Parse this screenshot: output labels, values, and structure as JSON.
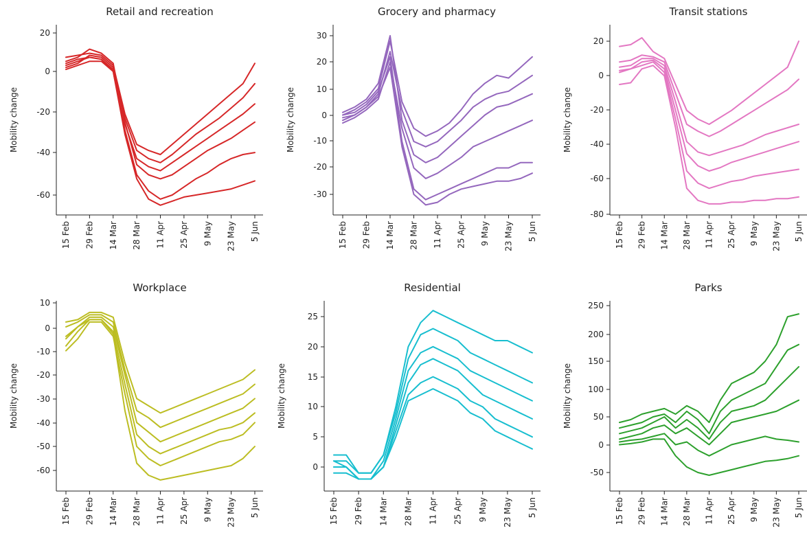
{
  "chart_data": [
    {
      "type": "line",
      "title": "Retail and recreation",
      "ylabel": "Mobility change",
      "color": "#d62728",
      "x_ticks": [
        "15 Feb",
        "29 Feb",
        "14 Mar",
        "28 Mar",
        "11 Apr",
        "25 Apr",
        "9 May",
        "23 May",
        "5 Jun"
      ],
      "y_ticks": [
        20,
        0,
        -20,
        -40,
        -60
      ],
      "ylim": [
        -70,
        22
      ],
      "x": [
        "15 Feb",
        "22 Feb",
        "29 Feb",
        "7 Mar",
        "14 Mar",
        "21 Mar",
        "28 Mar",
        "4 Apr",
        "11 Apr",
        "18 Apr",
        "25 Apr",
        "2 May",
        "9 May",
        "16 May",
        "23 May",
        "30 May",
        "5 Jun"
      ],
      "series": [
        {
          "values": [
            8,
            9,
            10,
            9,
            4,
            -20,
            -35,
            -38,
            -40,
            -35,
            -30,
            -25,
            -20,
            -15,
            -10,
            -5,
            5
          ]
        },
        {
          "values": [
            5,
            7,
            8,
            7,
            2,
            -22,
            -38,
            -42,
            -44,
            -40,
            -35,
            -30,
            -26,
            -22,
            -17,
            -12,
            -5
          ]
        },
        {
          "values": [
            6,
            8,
            12,
            10,
            5,
            -25,
            -42,
            -46,
            -48,
            -44,
            -40,
            -36,
            -32,
            -28,
            -24,
            -20,
            -15
          ]
        },
        {
          "values": [
            3,
            5,
            9,
            8,
            3,
            -24,
            -45,
            -50,
            -52,
            -50,
            -46,
            -42,
            -38,
            -35,
            -32,
            -28,
            -24
          ]
        },
        {
          "values": [
            2,
            4,
            6,
            6,
            1,
            -28,
            -50,
            -58,
            -62,
            -60,
            -56,
            -52,
            -49,
            -45,
            -42,
            -40,
            -39
          ]
        },
        {
          "values": [
            4,
            6,
            8,
            7,
            1,
            -30,
            -52,
            -62,
            -65,
            -63,
            -61,
            -60,
            -59,
            -58,
            -57,
            -55,
            -53
          ]
        }
      ]
    },
    {
      "type": "line",
      "title": "Grocery and pharmacy",
      "ylabel": "Mobility change",
      "color": "#9467bd",
      "x_ticks": [
        "15 Feb",
        "29 Feb",
        "14 Mar",
        "28 Mar",
        "11 Apr",
        "25 Apr",
        "9 May",
        "23 May",
        "5 Jun"
      ],
      "y_ticks": [
        30,
        20,
        10,
        0,
        -10,
        -20,
        -30
      ],
      "ylim": [
        -37,
        33
      ],
      "x": [
        "15 Feb",
        "22 Feb",
        "29 Feb",
        "7 Mar",
        "14 Mar",
        "21 Mar",
        "28 Mar",
        "4 Apr",
        "11 Apr",
        "18 Apr",
        "25 Apr",
        "2 May",
        "9 May",
        "16 May",
        "23 May",
        "30 May",
        "5 Jun"
      ],
      "series": [
        {
          "values": [
            0,
            2,
            5,
            10,
            28,
            5,
            -5,
            -8,
            -6,
            -3,
            2,
            8,
            12,
            15,
            14,
            18,
            22
          ]
        },
        {
          "values": [
            -2,
            0,
            3,
            8,
            24,
            2,
            -10,
            -12,
            -10,
            -6,
            -2,
            3,
            6,
            8,
            9,
            12,
            15
          ]
        },
        {
          "values": [
            1,
            3,
            6,
            12,
            30,
            -2,
            -15,
            -18,
            -16,
            -12,
            -8,
            -4,
            0,
            3,
            4,
            6,
            8
          ]
        },
        {
          "values": [
            -3,
            -1,
            2,
            6,
            20,
            -5,
            -20,
            -24,
            -22,
            -19,
            -16,
            -12,
            -10,
            -8,
            -6,
            -4,
            -2
          ]
        },
        {
          "values": [
            0,
            1,
            4,
            9,
            22,
            -10,
            -28,
            -32,
            -30,
            -28,
            -26,
            -24,
            -22,
            -20,
            -20,
            -18,
            -18
          ]
        },
        {
          "values": [
            -1,
            0,
            3,
            7,
            18,
            -12,
            -30,
            -34,
            -33,
            -30,
            -28,
            -27,
            -26,
            -25,
            -25,
            -24,
            -22
          ]
        }
      ]
    },
    {
      "type": "line",
      "title": "Transit stations",
      "ylabel": "Mobility change",
      "color": "#e377c2",
      "x_ticks": [
        "15 Feb",
        "29 Feb",
        "14 Mar",
        "28 Mar",
        "11 Apr",
        "25 Apr",
        "9 May",
        "23 May",
        "5 Jun"
      ],
      "y_ticks": [
        20,
        0,
        -20,
        -40,
        -60,
        -80
      ],
      "ylim": [
        -82,
        28
      ],
      "x": [
        "15 Feb",
        "22 Feb",
        "29 Feb",
        "7 Mar",
        "14 Mar",
        "21 Mar",
        "28 Mar",
        "4 Apr",
        "11 Apr",
        "18 Apr",
        "25 Apr",
        "2 May",
        "9 May",
        "16 May",
        "23 May",
        "30 May",
        "5 Jun"
      ],
      "series": [
        {
          "values": [
            17,
            18,
            22,
            14,
            10,
            -5,
            -20,
            -25,
            -28,
            -24,
            -20,
            -15,
            -10,
            -5,
            0,
            5,
            20
          ]
        },
        {
          "values": [
            8,
            9,
            12,
            11,
            8,
            -10,
            -28,
            -32,
            -35,
            -32,
            -28,
            -24,
            -20,
            -16,
            -12,
            -8,
            -2
          ]
        },
        {
          "values": [
            5,
            6,
            10,
            10,
            6,
            -15,
            -38,
            -44,
            -46,
            -44,
            -42,
            -40,
            -37,
            -34,
            -32,
            -30,
            -28
          ]
        },
        {
          "values": [
            3,
            4,
            8,
            9,
            4,
            -20,
            -45,
            -52,
            -55,
            -53,
            -50,
            -48,
            -46,
            -44,
            -42,
            -40,
            -38
          ]
        },
        {
          "values": [
            2,
            4,
            6,
            8,
            2,
            -25,
            -55,
            -62,
            -65,
            -63,
            -61,
            -60,
            -58,
            -57,
            -56,
            -55,
            -54
          ]
        },
        {
          "values": [
            -5,
            -4,
            4,
            6,
            0,
            -30,
            -65,
            -72,
            -74,
            -74,
            -73,
            -73,
            -72,
            -72,
            -71,
            -71,
            -70
          ]
        }
      ]
    },
    {
      "type": "line",
      "title": "Workplace",
      "ylabel": "Mobility change",
      "color": "#bcbd22",
      "x_ticks": [
        "15 Feb",
        "29 Feb",
        "14 Mar",
        "28 Mar",
        "11 Apr",
        "25 Apr",
        "9 May",
        "23 May",
        "5 Jun"
      ],
      "y_ticks": [
        10,
        0,
        -10,
        -20,
        -30,
        -40,
        -50,
        -60
      ],
      "ylim": [
        -68,
        12
      ],
      "x": [
        "15 Feb",
        "22 Feb",
        "29 Feb",
        "7 Mar",
        "14 Mar",
        "21 Mar",
        "28 Mar",
        "4 Apr",
        "11 Apr",
        "18 Apr",
        "25 Apr",
        "2 May",
        "9 May",
        "16 May",
        "23 May",
        "30 May",
        "5 Jun"
      ],
      "series": [
        {
          "values": [
            2,
            3,
            6,
            6,
            4,
            -15,
            -30,
            -33,
            -36,
            -34,
            -32,
            -30,
            -28,
            -26,
            -24,
            -22,
            -18
          ]
        },
        {
          "values": [
            0,
            2,
            5,
            5,
            2,
            -18,
            -35,
            -38,
            -42,
            -40,
            -38,
            -36,
            -34,
            -32,
            -30,
            -28,
            -24
          ]
        },
        {
          "values": [
            -5,
            0,
            4,
            4,
            0,
            -20,
            -40,
            -44,
            -48,
            -46,
            -44,
            -42,
            -40,
            -38,
            -36,
            -34,
            -30
          ]
        },
        {
          "values": [
            -8,
            -2,
            3,
            3,
            -2,
            -24,
            -45,
            -50,
            -53,
            -51,
            -49,
            -47,
            -45,
            -43,
            -42,
            -40,
            -36
          ]
        },
        {
          "values": [
            -10,
            -5,
            2,
            2,
            -4,
            -28,
            -50,
            -55,
            -58,
            -56,
            -54,
            -52,
            -50,
            -48,
            -47,
            -45,
            -40
          ]
        },
        {
          "values": [
            -4,
            0,
            3,
            3,
            -3,
            -35,
            -57,
            -62,
            -64,
            -63,
            -62,
            -61,
            -60,
            -59,
            -58,
            -55,
            -50
          ]
        }
      ]
    },
    {
      "type": "line",
      "title": "Residential",
      "ylabel": "Mobility change",
      "color": "#17becf",
      "x_ticks": [
        "15 Feb",
        "29 Feb",
        "14 Mar",
        "28 Mar",
        "11 Apr",
        "25 Apr",
        "9 May",
        "23 May",
        "5 Jun"
      ],
      "y_ticks": [
        25,
        20,
        15,
        10,
        5,
        0
      ],
      "ylim": [
        -3,
        28
      ],
      "x": [
        "15 Feb",
        "22 Feb",
        "29 Feb",
        "7 Mar",
        "14 Mar",
        "21 Mar",
        "28 Mar",
        "4 Apr",
        "11 Apr",
        "18 Apr",
        "25 Apr",
        "2 May",
        "9 May",
        "16 May",
        "23 May",
        "30 May",
        "5 Jun"
      ],
      "series": [
        {
          "values": [
            2,
            2,
            -1,
            -1,
            2,
            10,
            20,
            24,
            26,
            25,
            24,
            23,
            22,
            21,
            21,
            20,
            19
          ]
        },
        {
          "values": [
            1,
            1,
            -1,
            -1,
            2,
            9,
            18,
            22,
            23,
            22,
            21,
            19,
            18,
            17,
            16,
            15,
            14
          ]
        },
        {
          "values": [
            0,
            0,
            -2,
            -2,
            1,
            8,
            16,
            19,
            20,
            19,
            18,
            16,
            15,
            14,
            13,
            12,
            11
          ]
        },
        {
          "values": [
            0,
            0,
            -2,
            -2,
            0,
            7,
            14,
            17,
            18,
            17,
            16,
            14,
            12,
            11,
            10,
            9,
            8
          ]
        },
        {
          "values": [
            1,
            0,
            -2,
            -2,
            0,
            6,
            12,
            14,
            15,
            14,
            13,
            11,
            10,
            8,
            7,
            6,
            5
          ]
        },
        {
          "values": [
            -1,
            -1,
            -2,
            -2,
            0,
            5,
            11,
            12,
            13,
            12,
            11,
            9,
            8,
            6,
            5,
            4,
            3
          ]
        }
      ]
    },
    {
      "type": "line",
      "title": "Parks",
      "ylabel": "Mobility change",
      "color": "#2ca02c",
      "x_ticks": [
        "15 Feb",
        "29 Feb",
        "14 Mar",
        "28 Mar",
        "11 Apr",
        "25 Apr",
        "9 May",
        "23 May",
        "5 Jun"
      ],
      "y_ticks": [
        250,
        200,
        150,
        100,
        50,
        0,
        -50
      ],
      "ylim": [
        -80,
        255
      ],
      "x": [
        "15 Feb",
        "22 Feb",
        "29 Feb",
        "7 Mar",
        "14 Mar",
        "21 Mar",
        "28 Mar",
        "4 Apr",
        "11 Apr",
        "18 Apr",
        "25 Apr",
        "2 May",
        "9 May",
        "16 May",
        "23 May",
        "30 May",
        "5 Jun"
      ],
      "series": [
        {
          "values": [
            40,
            45,
            55,
            60,
            65,
            55,
            70,
            60,
            40,
            80,
            110,
            120,
            130,
            150,
            180,
            230,
            235
          ]
        },
        {
          "values": [
            30,
            35,
            40,
            50,
            55,
            40,
            60,
            45,
            20,
            60,
            80,
            90,
            100,
            110,
            140,
            170,
            180
          ]
        },
        {
          "values": [
            20,
            25,
            30,
            40,
            50,
            30,
            45,
            30,
            10,
            40,
            60,
            65,
            70,
            80,
            100,
            120,
            140
          ]
        },
        {
          "values": [
            10,
            15,
            20,
            30,
            35,
            20,
            30,
            15,
            0,
            20,
            40,
            45,
            50,
            55,
            60,
            70,
            80
          ]
        },
        {
          "values": [
            5,
            8,
            10,
            15,
            20,
            0,
            5,
            -10,
            -20,
            -10,
            0,
            5,
            10,
            15,
            10,
            8,
            5
          ]
        },
        {
          "values": [
            0,
            2,
            5,
            10,
            10,
            -20,
            -40,
            -50,
            -55,
            -50,
            -45,
            -40,
            -35,
            -30,
            -28,
            -25,
            -20
          ]
        }
      ]
    }
  ]
}
